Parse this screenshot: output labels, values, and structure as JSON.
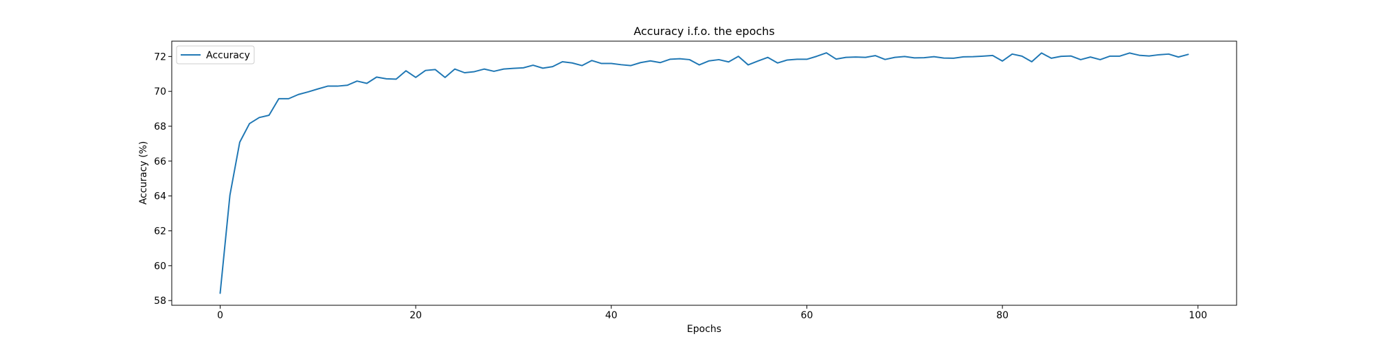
{
  "chart_data": {
    "type": "line",
    "title": "Accuracy i.f.o. the epochs",
    "xlabel": "Epochs",
    "ylabel": "Accuracy (%)",
    "xlim": [
      -4.95,
      103.95
    ],
    "ylim": [
      57.73,
      72.88
    ],
    "xticks": [
      0,
      20,
      40,
      60,
      80,
      100
    ],
    "yticks": [
      58,
      60,
      62,
      64,
      66,
      68,
      70,
      72
    ],
    "grid": false,
    "legend_position": "top-left",
    "series": [
      {
        "name": "Accuracy",
        "color": "#1f77b4",
        "x": [
          0,
          1,
          2,
          3,
          4,
          5,
          6,
          7,
          8,
          9,
          10,
          11,
          12,
          13,
          14,
          15,
          16,
          17,
          18,
          19,
          20,
          21,
          22,
          23,
          24,
          25,
          26,
          27,
          28,
          29,
          30,
          31,
          32,
          33,
          34,
          35,
          36,
          37,
          38,
          39,
          40,
          41,
          42,
          43,
          44,
          45,
          46,
          47,
          48,
          49,
          50,
          51,
          52,
          53,
          54,
          55,
          56,
          57,
          58,
          59,
          60,
          61,
          62,
          63,
          64,
          65,
          66,
          67,
          68,
          69,
          70,
          71,
          72,
          73,
          74,
          75,
          76,
          77,
          78,
          79,
          80,
          81,
          82,
          83,
          84,
          85,
          86,
          87,
          88,
          89,
          90,
          91,
          92,
          93,
          94,
          95,
          96,
          97,
          98,
          99
        ],
        "values": [
          58.42,
          64.05,
          67.08,
          68.15,
          68.5,
          68.63,
          69.58,
          69.58,
          69.82,
          69.97,
          70.14,
          70.3,
          70.3,
          70.35,
          70.59,
          70.46,
          70.82,
          70.72,
          70.7,
          71.18,
          70.8,
          71.2,
          71.25,
          70.8,
          71.28,
          71.07,
          71.13,
          71.28,
          71.15,
          71.28,
          71.32,
          71.35,
          71.5,
          71.33,
          71.42,
          71.7,
          71.63,
          71.48,
          71.77,
          71.6,
          71.6,
          71.53,
          71.48,
          71.65,
          71.75,
          71.65,
          71.84,
          71.87,
          71.82,
          71.52,
          71.75,
          71.82,
          71.69,
          72.01,
          71.52,
          71.74,
          71.95,
          71.63,
          71.8,
          71.84,
          71.84,
          72.01,
          72.21,
          71.85,
          71.95,
          71.97,
          71.95,
          72.05,
          71.83,
          71.95,
          72.0,
          71.92,
          71.93,
          71.99,
          71.91,
          71.9,
          71.98,
          71.99,
          72.02,
          72.06,
          71.74,
          72.14,
          72.02,
          71.7,
          72.2,
          71.9,
          72.01,
          72.03,
          71.82,
          71.97,
          71.82,
          72.02,
          72.02,
          72.2,
          72.07,
          72.03,
          72.1,
          72.14,
          71.97,
          72.12
        ]
      }
    ]
  }
}
